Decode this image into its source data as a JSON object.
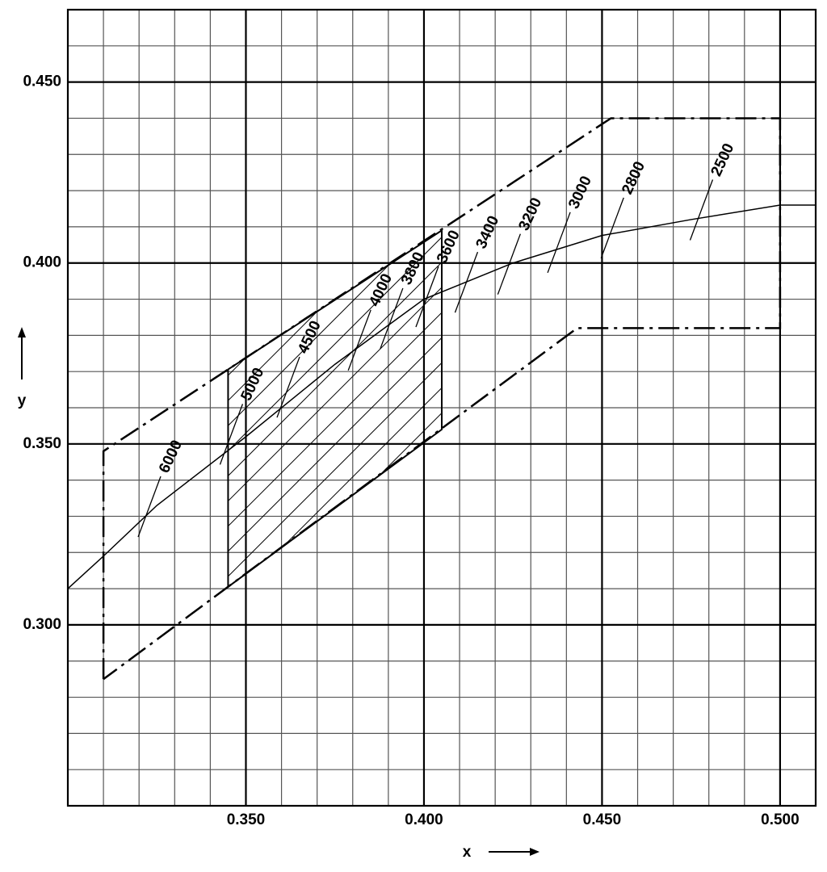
{
  "chart_data": {
    "type": "line",
    "x_label": "x",
    "y_label": "y",
    "xlim": [
      0.3,
      0.51
    ],
    "ylim": [
      0.25,
      0.47
    ],
    "xticks": [
      {
        "value": 0.35,
        "label": "0.350"
      },
      {
        "value": 0.4,
        "label": "0.400"
      },
      {
        "value": 0.45,
        "label": "0.450"
      },
      {
        "value": 0.5,
        "label": "0.500"
      }
    ],
    "yticks": [
      {
        "value": 0.3,
        "label": "0.300"
      },
      {
        "value": 0.35,
        "label": "0.350"
      },
      {
        "value": 0.4,
        "label": "0.400"
      },
      {
        "value": 0.45,
        "label": "0.450"
      }
    ],
    "grid": true,
    "grid_step": 0.01,
    "color": "#000000",
    "series": [
      {
        "x": [
          0.3,
          0.31,
          0.325,
          0.35,
          0.375,
          0.4,
          0.425,
          0.45,
          0.475,
          0.5,
          0.51
        ],
        "values": [
          0.31,
          0.319,
          0.333,
          0.352,
          0.372,
          0.39,
          0.4,
          0.4076,
          0.412,
          0.416,
          0.416
        ]
      }
    ],
    "boundary": {
      "x": [
        0.31,
        0.31,
        0.4525,
        0.5,
        0.5,
        0.443,
        0.31
      ],
      "y": [
        0.285,
        0.348,
        0.44,
        0.44,
        0.382,
        0.382,
        0.285
      ]
    },
    "hatched_region": {
      "x": [
        0.345,
        0.345,
        0.405,
        0.405
      ],
      "y": [
        0.3105,
        0.3706,
        0.409,
        0.354
      ]
    },
    "isotherms": [
      {
        "temperature": 6000,
        "x": 0.322,
        "y": 0.331
      },
      {
        "temperature": 5000,
        "x": 0.345,
        "y": 0.351
      },
      {
        "temperature": 4500,
        "x": 0.361,
        "y": 0.364
      },
      {
        "temperature": 4000,
        "x": 0.381,
        "y": 0.377
      },
      {
        "temperature": 3800,
        "x": 0.39,
        "y": 0.383
      },
      {
        "temperature": 3600,
        "x": 0.4,
        "y": 0.389
      },
      {
        "temperature": 3400,
        "x": 0.411,
        "y": 0.393
      },
      {
        "temperature": 3200,
        "x": 0.423,
        "y": 0.398
      },
      {
        "temperature": 3000,
        "x": 0.437,
        "y": 0.404
      },
      {
        "temperature": 2800,
        "x": 0.452,
        "y": 0.408
      },
      {
        "temperature": 2500,
        "x": 0.477,
        "y": 0.413
      }
    ]
  }
}
